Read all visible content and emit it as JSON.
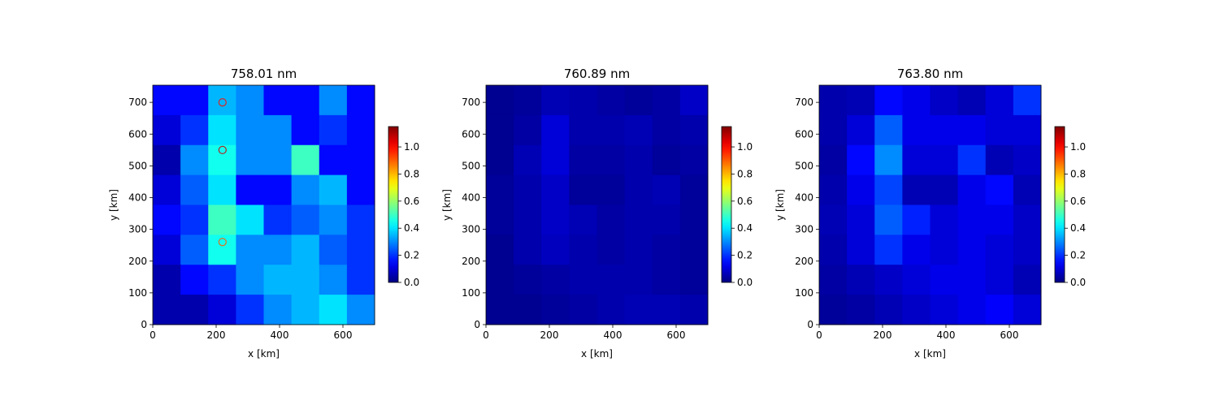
{
  "chart_data": [
    {
      "type": "heatmap",
      "title": "758.01 nm",
      "xlabel": "x [km]",
      "ylabel": "y [km]",
      "xlim": [
        0,
        700
      ],
      "ylim": [
        0,
        754
      ],
      "xticks": [
        0,
        200,
        400,
        600
      ],
      "yticks": [
        0,
        100,
        200,
        300,
        400,
        500,
        600,
        700
      ],
      "colormap": "jet",
      "clim": [
        0,
        1.15
      ],
      "cticks": [
        {
          "value": 0,
          "label": "0.0"
        },
        0.2,
        0.4,
        0.6,
        0.8,
        {
          "value": 1,
          "label": "1.0"
        }
      ],
      "z": [
        [
          0.15,
          0.15,
          0.35,
          0.3,
          0.15,
          0.15,
          0.3,
          0.15
        ],
        [
          0.1,
          0.2,
          0.4,
          0.3,
          0.3,
          0.15,
          0.2,
          0.15
        ],
        [
          0.05,
          0.3,
          0.45,
          0.3,
          0.3,
          0.5,
          0.15,
          0.15
        ],
        [
          0.1,
          0.25,
          0.4,
          0.15,
          0.15,
          0.3,
          0.35,
          0.15
        ],
        [
          0.15,
          0.2,
          0.5,
          0.4,
          0.2,
          0.25,
          0.3,
          0.2
        ],
        [
          0.1,
          0.25,
          0.45,
          0.3,
          0.3,
          0.35,
          0.25,
          0.2
        ],
        [
          0.05,
          0.15,
          0.2,
          0.3,
          0.35,
          0.35,
          0.3,
          0.2
        ],
        [
          0.05,
          0.05,
          0.1,
          0.2,
          0.3,
          0.35,
          0.4,
          0.3
        ]
      ],
      "markers": {
        "x": [
          220,
          220,
          220
        ],
        "y": [
          700,
          550,
          260
        ],
        "colors": [
          "#d62728",
          "#b22222",
          "#e07020"
        ]
      }
    },
    {
      "type": "heatmap",
      "title": "760.89 nm",
      "xlabel": "x [km]",
      "ylabel": "y [km]",
      "xlim": [
        0,
        700
      ],
      "ylim": [
        0,
        754
      ],
      "xticks": [
        0,
        200,
        400,
        600
      ],
      "yticks": [
        0,
        100,
        200,
        300,
        400,
        500,
        600,
        700
      ],
      "colormap": "jet",
      "clim": [
        0,
        1.15
      ],
      "cticks": [
        {
          "value": 0,
          "label": "0.0"
        },
        0.2,
        0.4,
        0.6,
        0.8,
        {
          "value": 1,
          "label": "1.0"
        }
      ],
      "z": [
        [
          0.02,
          0.03,
          0.06,
          0.05,
          0.04,
          0.03,
          0.04,
          0.08
        ],
        [
          0.02,
          0.04,
          0.1,
          0.05,
          0.05,
          0.06,
          0.04,
          0.05
        ],
        [
          0.02,
          0.06,
          0.1,
          0.04,
          0.04,
          0.05,
          0.03,
          0.04
        ],
        [
          0.03,
          0.05,
          0.08,
          0.03,
          0.03,
          0.05,
          0.06,
          0.03
        ],
        [
          0.03,
          0.05,
          0.08,
          0.06,
          0.04,
          0.05,
          0.05,
          0.03
        ],
        [
          0.02,
          0.05,
          0.07,
          0.05,
          0.04,
          0.05,
          0.04,
          0.03
        ],
        [
          0.02,
          0.03,
          0.04,
          0.05,
          0.05,
          0.05,
          0.04,
          0.03
        ],
        [
          0.02,
          0.02,
          0.03,
          0.04,
          0.05,
          0.06,
          0.06,
          0.05
        ]
      ]
    },
    {
      "type": "heatmap",
      "title": "763.80 nm",
      "xlabel": "x [km]",
      "ylabel": "y [km]",
      "xlim": [
        0,
        700
      ],
      "ylim": [
        0,
        754
      ],
      "xticks": [
        0,
        200,
        400,
        600
      ],
      "yticks": [
        0,
        100,
        200,
        300,
        400,
        500,
        600,
        700
      ],
      "colormap": "jet",
      "clim": [
        0,
        1.15
      ],
      "cticks": [
        {
          "value": 0,
          "label": "0.0"
        },
        0.2,
        0.4,
        0.6,
        0.8,
        {
          "value": 1,
          "label": "1.0"
        }
      ],
      "z": [
        [
          0.05,
          0.06,
          0.15,
          0.12,
          0.08,
          0.06,
          0.1,
          0.2
        ],
        [
          0.05,
          0.1,
          0.25,
          0.12,
          0.12,
          0.12,
          0.1,
          0.1
        ],
        [
          0.04,
          0.15,
          0.3,
          0.1,
          0.1,
          0.2,
          0.06,
          0.08
        ],
        [
          0.05,
          0.12,
          0.22,
          0.06,
          0.06,
          0.12,
          0.15,
          0.06
        ],
        [
          0.06,
          0.1,
          0.25,
          0.18,
          0.1,
          0.12,
          0.12,
          0.08
        ],
        [
          0.05,
          0.1,
          0.2,
          0.12,
          0.1,
          0.12,
          0.1,
          0.08
        ],
        [
          0.04,
          0.06,
          0.08,
          0.1,
          0.12,
          0.12,
          0.1,
          0.06
        ],
        [
          0.03,
          0.04,
          0.06,
          0.08,
          0.1,
          0.12,
          0.14,
          0.1
        ]
      ]
    }
  ]
}
